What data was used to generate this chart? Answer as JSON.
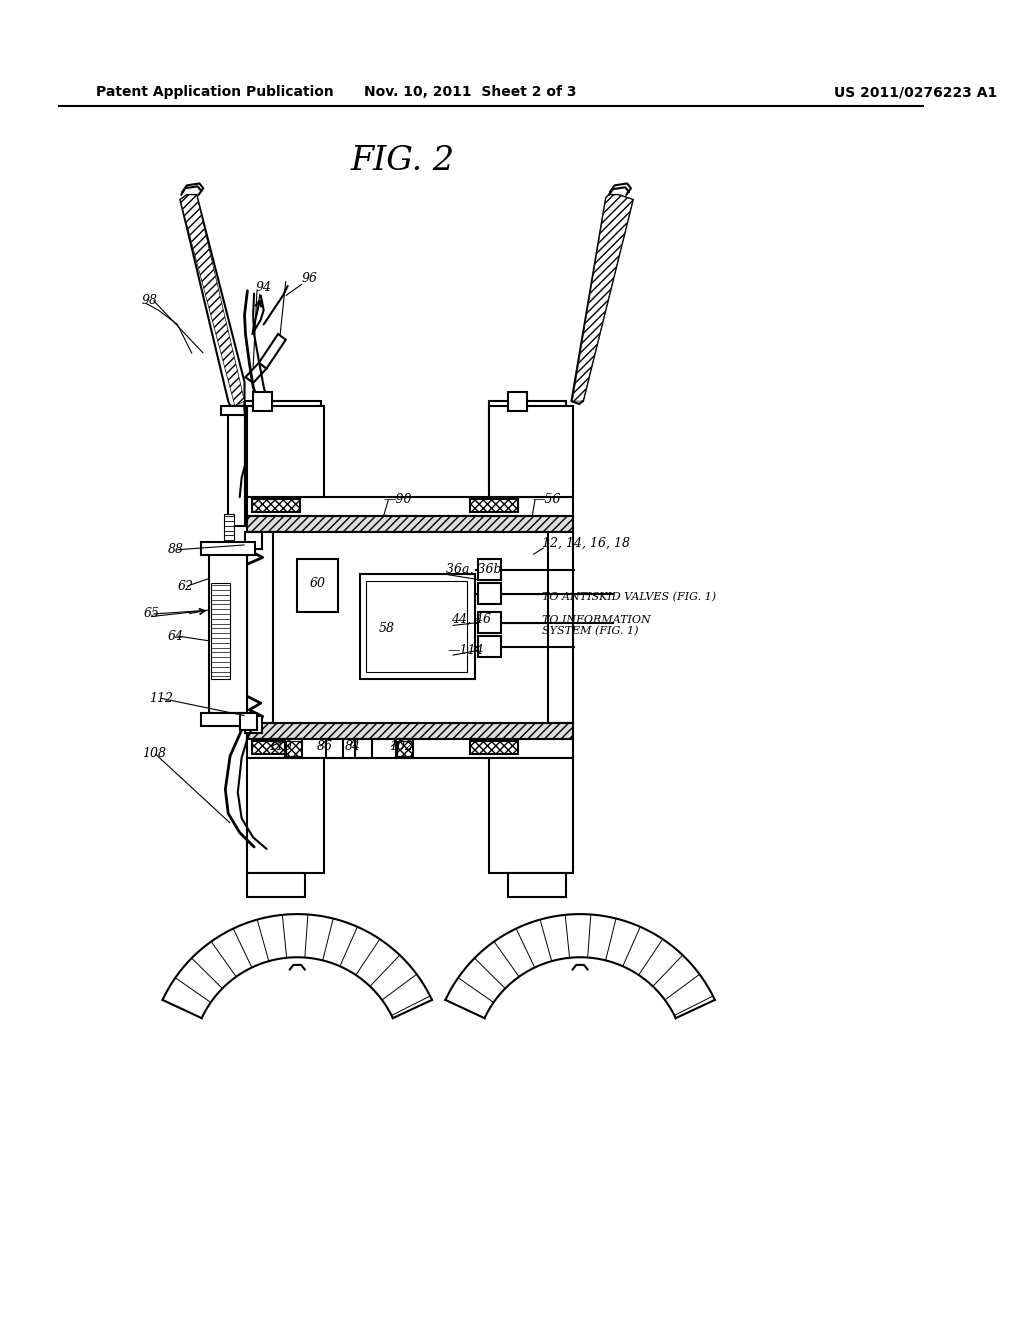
{
  "title": "FIG. 2",
  "header_left": "Patent Application Publication",
  "header_center": "Nov. 10, 2011  Sheet 2 of 3",
  "header_right": "US 2011/0276223 A1",
  "bg_color": "#ffffff"
}
